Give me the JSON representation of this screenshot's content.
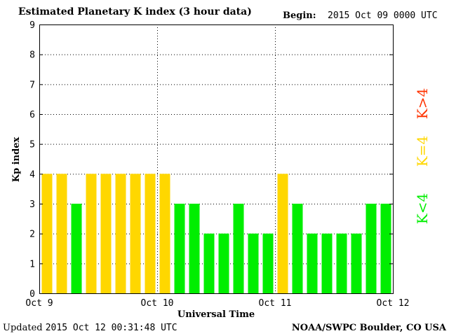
{
  "header": {
    "title": "Estimated Planetary K index (3 hour data)",
    "begin_label": "Begin:",
    "begin_value": "2015 Oct 09 0000 UTC"
  },
  "footer": {
    "updated_label": "Updated",
    "updated_value": "2015 Oct 12 00:31:48 UTC",
    "credit": "NOAA/SWPC Boulder, CO USA"
  },
  "colors": {
    "green": "#00ee00",
    "yellow": "#ffd700",
    "red": "#ff3300"
  },
  "legend": [
    {
      "label": "K<4",
      "color": "#00ee00"
    },
    {
      "label": "K=4",
      "color": "#ffd700"
    },
    {
      "label": "K>4",
      "color": "#ff3300"
    }
  ],
  "chart_data": {
    "type": "bar",
    "title": "Estimated Planetary K index (3 hour data)",
    "xlabel": "Universal Time",
    "ylabel": "Kp index",
    "ylim": [
      0,
      9
    ],
    "yticks": [
      "0",
      "1",
      "2",
      "3",
      "4",
      "5",
      "6",
      "7",
      "8",
      "9"
    ],
    "xticks": [
      "Oct 9",
      "Oct 10",
      "Oct 11",
      "Oct 12"
    ],
    "grid": true,
    "values": [
      4,
      4,
      3,
      4,
      4,
      4,
      4,
      4,
      4,
      3,
      3,
      2,
      2,
      3,
      2,
      2,
      4,
      3,
      2,
      2,
      2,
      2,
      3,
      3
    ]
  }
}
